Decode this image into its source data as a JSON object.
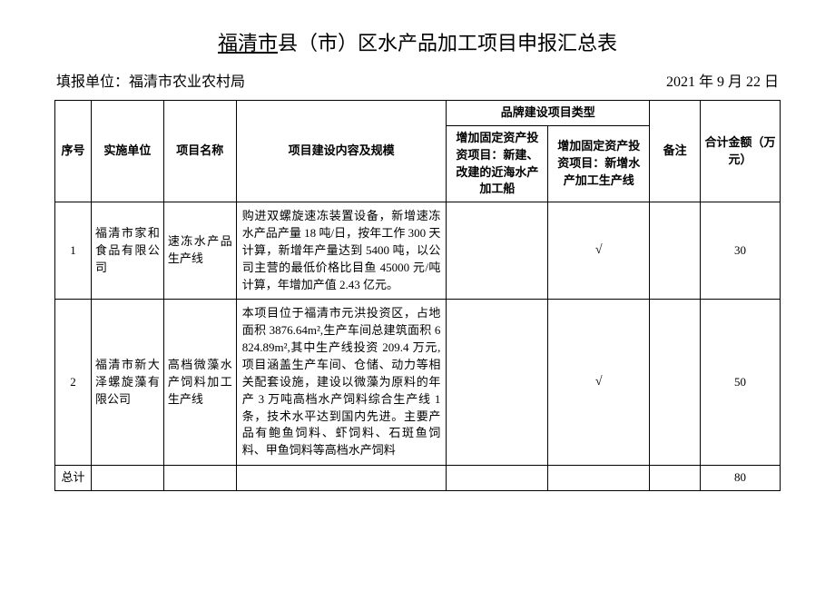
{
  "title_underlined": "福清市",
  "title_rest": "县（市）区水产品加工项目申报汇总表",
  "filler_label": "填报单位：",
  "filler_value": "福清市农业农村局",
  "date": "2021 年 9 月 22 日",
  "headers": {
    "seq": "序号",
    "unit": "实施单位",
    "name": "项目名称",
    "desc": "项目建设内容及规模",
    "brand_type": "品牌建设项目类型",
    "type1": "增加固定资产投资项目：新建、改建的近海水产加工船",
    "type2": "增加固定资产投资项目：新增水产加工生产线",
    "note": "备注",
    "sum": "合计金额（万元）"
  },
  "rows": [
    {
      "seq": "1",
      "unit": "福清市家和食品有限公司",
      "name": "速冻水产品生产线",
      "desc": "购进双螺旋速冻装置设备，新增速冻水产品产量 18 吨/日，按年工作 300 天计算，新增年产量达到 5400 吨，以公司主营的最低价格比目鱼 45000 元/吨计算，年增加产值 2.43 亿元。",
      "type1": "",
      "type2": "√",
      "note": "",
      "sum": "30"
    },
    {
      "seq": "2",
      "unit": "福清市新大泽螺旋藻有限公司",
      "name": "高档微藻水产饲料加工生产线",
      "desc": "本项目位于福清市元洪投资区，占地面积 3876.64m²,生产车间总建筑面积 6824.89m²,其中生产线投资 209.4 万元,项目涵盖生产车间、仓储、动力等相关配套设施，建设以微藻为原料的年产 3 万吨高档水产饲料综合生产线 1 条，技术水平达到国内先进。主要产品有鲍鱼饲料、虾饲料、石斑鱼饲料、甲鱼饲料等高档水产饲料",
      "type1": "",
      "type2": "√",
      "note": "",
      "sum": "50"
    }
  ],
  "total_label": "总计",
  "total_value": "80",
  "colors": {
    "text": "#000000",
    "bg": "#ffffff",
    "border": "#000000"
  }
}
